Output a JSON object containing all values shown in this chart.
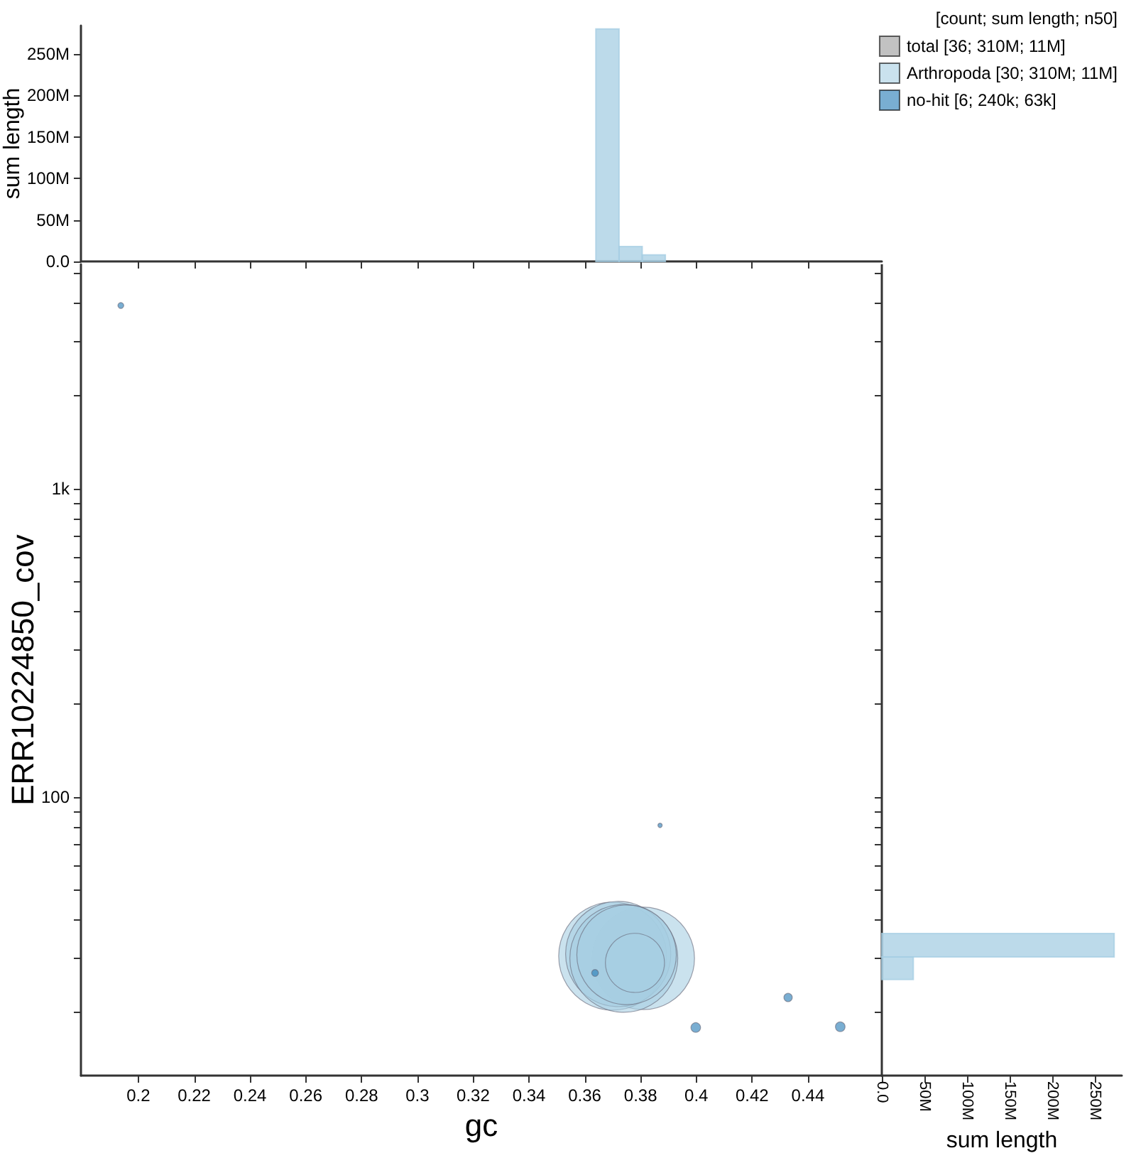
{
  "chart_data": [
    {
      "type": "histogram",
      "ylabel": "sum length",
      "bins": [
        0.364,
        0.3723,
        0.3806,
        0.3889
      ],
      "values": [
        280,
        18,
        8
      ],
      "color": "#a6cee3",
      "xlim": [
        0.1794,
        0.4665
      ],
      "ylim": [
        0,
        284
      ],
      "xticks": [
        {
          "value": 0.2,
          "label": null
        },
        {
          "value": 0.22,
          "label": null
        },
        {
          "value": 0.24,
          "label": null
        },
        {
          "value": 0.26,
          "label": null
        },
        {
          "value": 0.28,
          "label": null
        },
        {
          "value": 0.3,
          "label": null
        },
        {
          "value": 0.32,
          "label": null
        },
        {
          "value": 0.34,
          "label": null
        },
        {
          "value": 0.36,
          "label": null
        },
        {
          "value": 0.38,
          "label": null
        },
        {
          "value": 0.4,
          "label": null
        },
        {
          "value": 0.42,
          "label": null
        },
        {
          "value": 0.44,
          "label": null
        }
      ],
      "yticks": [
        {
          "value": 0,
          "label": "0.0"
        },
        {
          "value": 50,
          "label": "50M"
        },
        {
          "value": 100,
          "label": "100M"
        },
        {
          "value": 150,
          "label": "150M"
        },
        {
          "value": 200,
          "label": "200M"
        },
        {
          "value": 250,
          "label": "250M"
        }
      ],
      "tick_labels": "y"
    },
    {
      "type": "bubble",
      "xlabel": "gc",
      "ylabel": "ERR10224850_cov",
      "legend_title": "[count; sum length; n50]",
      "legend": "top right",
      "log": "y",
      "marker": "circle",
      "xlim": [
        0.1794,
        0.4665
      ],
      "ylim": [
        12.5,
        5346
      ],
      "xticks": [
        0.2,
        0.22,
        0.24,
        0.26,
        0.28,
        0.3,
        0.32,
        0.34,
        0.36,
        0.38,
        0.4,
        0.42,
        0.44
      ],
      "yticks": [
        {
          "value": 20,
          "label": null
        },
        {
          "value": 30,
          "label": null
        },
        {
          "value": 40,
          "label": null
        },
        {
          "value": 50,
          "label": null
        },
        {
          "value": 60,
          "label": null
        },
        {
          "value": 70,
          "label": null
        },
        {
          "value": 80,
          "label": null
        },
        {
          "value": 90,
          "label": null
        },
        {
          "value": 100,
          "label": "100"
        },
        {
          "value": 200,
          "label": null
        },
        {
          "value": 300,
          "label": null
        },
        {
          "value": 400,
          "label": null
        },
        {
          "value": 500,
          "label": null
        },
        {
          "value": 600,
          "label": null
        },
        {
          "value": 700,
          "label": null
        },
        {
          "value": 800,
          "label": null
        },
        {
          "value": 900,
          "label": null
        },
        {
          "value": 1000,
          "label": "1k"
        },
        {
          "value": 2000,
          "label": null
        },
        {
          "value": 3000,
          "label": null
        },
        {
          "value": 4000,
          "label": null
        },
        {
          "value": 5000,
          "label": null
        }
      ],
      "series": [
        {
          "name": "total [36; 310M; 11M]",
          "color": "#999999"
        },
        {
          "name": "Arthropoda [30; 310M; 11M]",
          "color": "#a6cee3",
          "x": [
            0.381,
            0.37,
            0.372,
            0.374,
            0.375,
            0.378
          ],
          "values": [
            30,
            30.5,
            31,
            30,
            30.8,
            29
          ],
          "sizes": [
            0.9,
            1,
            0.95,
            1,
            0.85,
            0.3
          ]
        },
        {
          "name": "no-hit [6; 240k; 63k]",
          "color": "#1f78b4",
          "x": [
            0.1937,
            0.387,
            0.3637,
            0.4329,
            0.3998,
            0.4516
          ],
          "values": [
            3930,
            81,
            26.9,
            22.4,
            17.9,
            18
          ],
          "sizes": [
            0.003,
            0.0016,
            0.004,
            0.006,
            0.008,
            0.008
          ]
        }
      ]
    },
    {
      "type": "histogram",
      "orientation": "horizontal",
      "xlabel": "sum length",
      "bins": [
        25.6,
        30.3,
        36.1
      ],
      "values": [
        37,
        273
      ],
      "color": "#a6cee3",
      "log": "y",
      "xlim": [
        0,
        282
      ],
      "ylim": [
        12.5,
        5346
      ],
      "xticks": [
        {
          "value": 0,
          "label": "0.0"
        },
        {
          "value": 50,
          "label": "50M"
        },
        {
          "value": 100,
          "label": "100M"
        },
        {
          "value": 150,
          "label": "150M"
        },
        {
          "value": 200,
          "label": "200M"
        },
        {
          "value": 250,
          "label": "250M"
        }
      ],
      "yticks": [
        {
          "value": 20,
          "label": null
        },
        {
          "value": 30,
          "label": null
        },
        {
          "value": 40,
          "label": null
        },
        {
          "value": 50,
          "label": null
        },
        {
          "value": 60,
          "label": null
        },
        {
          "value": 70,
          "label": null
        },
        {
          "value": 80,
          "label": null
        },
        {
          "value": 90,
          "label": null
        },
        {
          "value": 100,
          "label": null
        },
        {
          "value": 200,
          "label": null
        },
        {
          "value": 300,
          "label": null
        },
        {
          "value": 400,
          "label": null
        },
        {
          "value": 500,
          "label": null
        },
        {
          "value": 600,
          "label": null
        },
        {
          "value": 700,
          "label": null
        },
        {
          "value": 800,
          "label": null
        },
        {
          "value": 900,
          "label": null
        },
        {
          "value": 1000,
          "label": null
        },
        {
          "value": 2000,
          "label": null
        },
        {
          "value": 3000,
          "label": null
        },
        {
          "value": 4000,
          "label": null
        },
        {
          "value": 5000,
          "label": null
        }
      ],
      "tick_labels": "x"
    }
  ]
}
